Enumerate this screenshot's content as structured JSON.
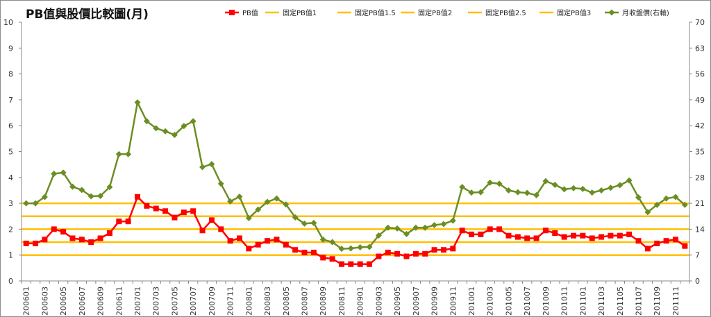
{
  "chart_data": {
    "type": "line",
    "title": "PB值與股價比較圖(月)",
    "xlabel": "",
    "ylabel": "",
    "ylabel_right": "",
    "ylim": [
      0,
      10
    ],
    "ylim_right": [
      0,
      70
    ],
    "y_ticks": [
      "0",
      "1",
      "2",
      "3",
      "4",
      "5",
      "6",
      "7",
      "8",
      "9",
      "10"
    ],
    "y_ticks_right": [
      "0",
      "7",
      "14",
      "21",
      "28",
      "35",
      "42",
      "49",
      "56",
      "63",
      "70"
    ],
    "grid": false,
    "legend_position": "top",
    "x": [
      "200601",
      "200602",
      "200603",
      "200604",
      "200605",
      "200606",
      "200607",
      "200608",
      "200609",
      "200610",
      "200611",
      "200612",
      "200701",
      "200702",
      "200703",
      "200704",
      "200705",
      "200706",
      "200707",
      "200708",
      "200709",
      "200710",
      "200711",
      "200712",
      "200801",
      "200802",
      "200803",
      "200804",
      "200805",
      "200806",
      "200807",
      "200808",
      "200809",
      "200810",
      "200811",
      "200812",
      "200901",
      "200902",
      "200903",
      "200904",
      "200905",
      "200906",
      "200907",
      "200908",
      "200909",
      "200910",
      "200911",
      "200912",
      "201001",
      "201002",
      "201003",
      "201004",
      "201005",
      "201006",
      "201007",
      "201008",
      "201009",
      "201010",
      "201011",
      "201012",
      "201101",
      "201102",
      "201103",
      "201104",
      "201105",
      "201106",
      "201107",
      "201108",
      "201109",
      "201110",
      "201111",
      "201112"
    ],
    "x_tick_labels": [
      "200601",
      "200603",
      "200605",
      "200607",
      "200609",
      "200611",
      "200701",
      "200703",
      "200705",
      "200707",
      "200709",
      "200711",
      "200801",
      "200803",
      "200805",
      "200807",
      "200809",
      "200811",
      "200901",
      "200903",
      "200905",
      "200907",
      "200909",
      "200911",
      "201001",
      "201003",
      "201005",
      "201007",
      "201009",
      "201011",
      "201101",
      "201103",
      "201105",
      "201107",
      "201109",
      "201111"
    ],
    "series": [
      {
        "name": "PB值",
        "axis": "left",
        "color": "#ff0000",
        "marker": "square",
        "values": [
          1.45,
          1.45,
          1.6,
          2.0,
          1.9,
          1.65,
          1.6,
          1.5,
          1.65,
          1.85,
          2.3,
          2.3,
          3.25,
          2.9,
          2.8,
          2.7,
          2.45,
          2.65,
          2.7,
          1.95,
          2.35,
          2.0,
          1.55,
          1.65,
          1.25,
          1.4,
          1.55,
          1.6,
          1.4,
          1.2,
          1.1,
          1.1,
          0.9,
          0.85,
          0.65,
          0.65,
          0.65,
          0.65,
          0.95,
          1.1,
          1.05,
          0.95,
          1.05,
          1.05,
          1.2,
          1.2,
          1.25,
          1.95,
          1.8,
          1.8,
          2.0,
          2.0,
          1.75,
          1.7,
          1.65,
          1.65,
          1.95,
          1.85,
          1.7,
          1.75,
          1.75,
          1.65,
          1.7,
          1.75,
          1.75,
          1.8,
          1.55,
          1.25,
          1.45,
          1.55,
          1.6,
          1.35
        ]
      },
      {
        "name": "固定PB值1",
        "axis": "left",
        "color": "#ffc000",
        "constant": 1
      },
      {
        "name": "固定PB值1.5",
        "axis": "left",
        "color": "#ffc000",
        "constant": 1.5
      },
      {
        "name": "固定PB值2",
        "axis": "left",
        "color": "#ffc000",
        "constant": 2
      },
      {
        "name": "固定PB值2.5",
        "axis": "left",
        "color": "#ffc000",
        "constant": 2.5
      },
      {
        "name": "固定PB值3",
        "axis": "left",
        "color": "#ffc000",
        "constant": 3
      },
      {
        "name": "月收盤價(右軸)",
        "axis": "right",
        "color": "#6b8e23",
        "marker": "diamond",
        "values": [
          21,
          21,
          22.7,
          29,
          29.3,
          25.5,
          24.6,
          22.9,
          23,
          25.4,
          34.3,
          34.3,
          48.3,
          43.2,
          41.3,
          40.5,
          39.5,
          41.9,
          43.2,
          30.8,
          31.6,
          26.3,
          21.5,
          22.8,
          17,
          19.3,
          21.4,
          22.3,
          20.7,
          17.2,
          15.5,
          15.7,
          11.2,
          10.5,
          8.7,
          8.8,
          9.1,
          9.2,
          12.3,
          14.4,
          14.2,
          12.7,
          14.4,
          14.4,
          15.1,
          15.4,
          16.3,
          25.4,
          23.9,
          24,
          26.6,
          26.3,
          24.5,
          24,
          23.8,
          23.2,
          27,
          26,
          24.8,
          25.1,
          24.9,
          23.9,
          24.5,
          25.2,
          25.9,
          27.2,
          22.6,
          18.6,
          20.6,
          22.3,
          22.7,
          20.6
        ]
      }
    ]
  }
}
